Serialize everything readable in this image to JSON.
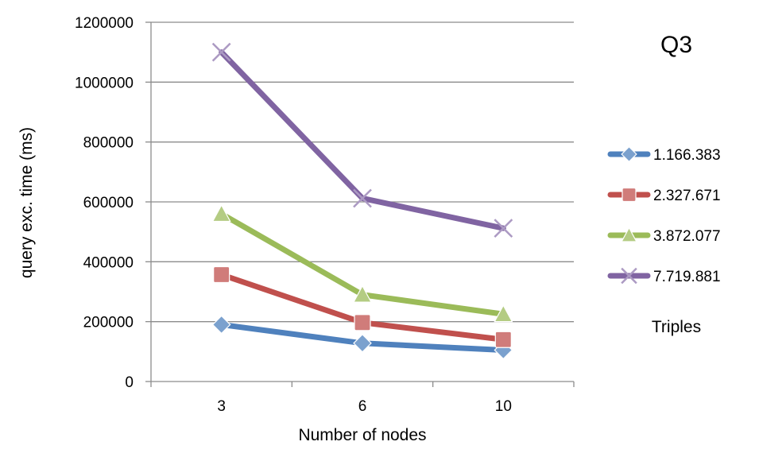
{
  "chart_data": {
    "type": "line",
    "title": "Q3",
    "xlabel": "Number of nodes",
    "ylabel": "query exc. time (ms)",
    "categories": [
      "3",
      "6",
      "10"
    ],
    "ylim": [
      0,
      1200000
    ],
    "yticks": [
      "0",
      "200000",
      "400000",
      "600000",
      "800000",
      "1000000",
      "1200000"
    ],
    "yticks_values": [
      0,
      200000,
      400000,
      600000,
      800000,
      1000000,
      1200000
    ],
    "grid": true,
    "legend_title": "Triples",
    "legend_position": "right",
    "series": [
      {
        "name": "1.166.383",
        "values": [
          190000,
          128000,
          105000
        ],
        "color": "#4f81bd",
        "marker": "diamond"
      },
      {
        "name": "2.327.671",
        "values": [
          357000,
          197000,
          140000
        ],
        "color": "#c0504d",
        "marker": "square"
      },
      {
        "name": "3.872.077",
        "values": [
          560000,
          290000,
          225000
        ],
        "color": "#9bbb59",
        "marker": "triangle"
      },
      {
        "name": "7.719.881",
        "values": [
          1100000,
          612000,
          512000
        ],
        "color": "#8064a2",
        "marker": "x"
      }
    ]
  }
}
